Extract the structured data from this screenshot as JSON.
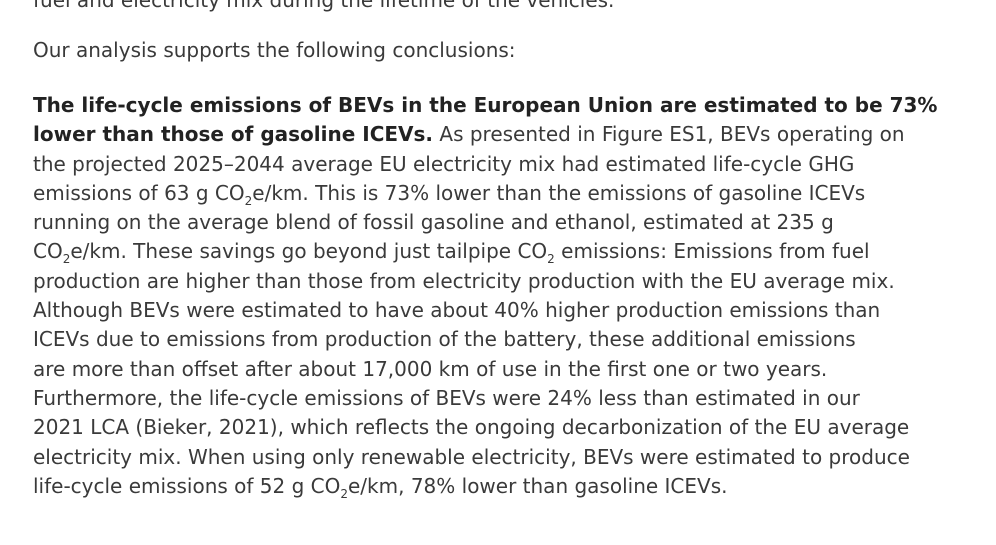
{
  "top_cut_text": "fuel and electricity mix during the lifetime of the vehicles.",
  "intro": "Our analysis supports the following conclusions:",
  "para": {
    "l1_bold": "The life-cycle emissions of BEVs in the European Union are estimated to be 73%",
    "l2_bold": "lower than those of gasoline ICEVs.",
    "l2_rest": " As presented in Figure ES1, BEVs operating on",
    "l3": "the projected 2025–2044 average EU electricity mix had estimated life-cycle GHG",
    "l4_a": "emissions of 63 g CO",
    "l4_sub": "2",
    "l4_b": "e/km. This is 73% lower than the emissions of gasoline ICEVs",
    "l5": "running on the average blend of fossil gasoline and ethanol, estimated at 235 g",
    "l6_a": "CO",
    "l6_sub1": "2",
    "l6_b": "e/km. These savings go beyond just tailpipe CO",
    "l6_sub2": "2",
    "l6_c": " emissions: Emissions from fuel",
    "l7": "production are higher than those from electricity production with the EU average mix.",
    "l8": "Although BEVs were estimated to have about 40% higher production emissions than",
    "l9": "ICEVs due to emissions from production of the battery, these additional emissions",
    "l10": "are more than offset after about 17,000 km of use in the first one or two years.",
    "l11": "Furthermore, the life-cycle emissions of BEVs were 24% less than estimated in our",
    "l12": "2021 LCA (Bieker, 2021), which reflects the ongoing decarbonization of the EU average",
    "l13": "electricity mix. When using only renewable electricity, BEVs were estimated to produce",
    "l14_a": "life-cycle emissions of 52 g CO",
    "l14_sub": "2",
    "l14_b": "e/km, 78% lower than gasoline ICEVs."
  }
}
